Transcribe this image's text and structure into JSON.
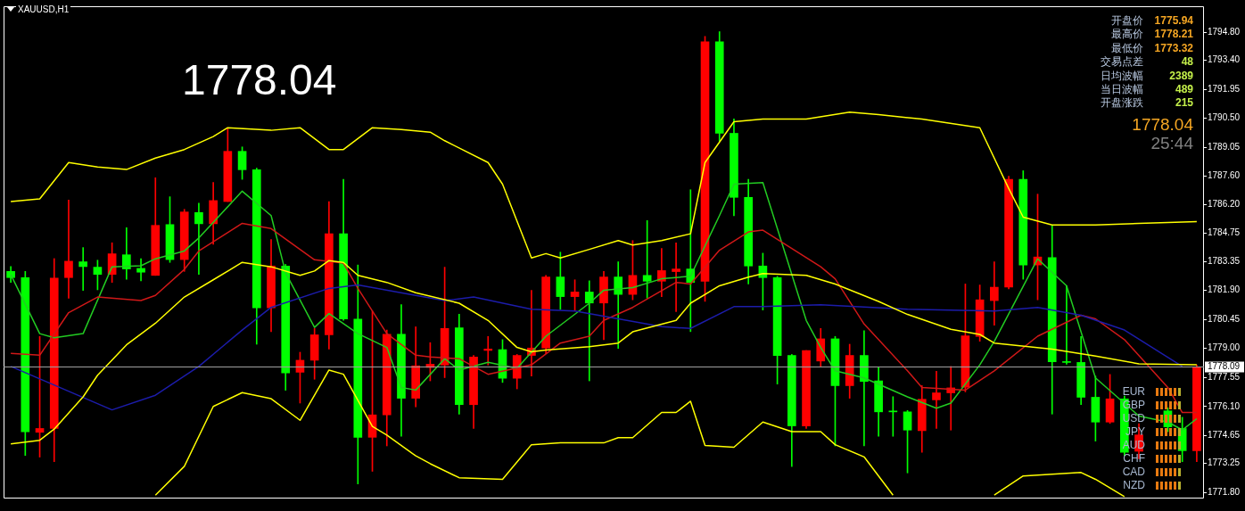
{
  "chart_data": {
    "type": "candlestick",
    "title": "XAUUSD,H1",
    "categories": [
      null,
      null,
      null,
      null,
      null,
      null,
      null,
      null,
      null,
      null,
      null,
      null,
      null,
      null,
      null,
      null,
      null,
      null,
      null,
      null,
      null,
      null,
      null,
      null,
      null,
      null,
      null,
      null,
      null,
      null,
      null,
      null,
      null,
      null,
      null,
      null,
      null,
      null,
      null,
      null,
      null,
      null,
      null,
      null,
      null,
      null,
      null,
      null,
      null,
      null,
      null,
      null,
      null,
      null,
      null,
      null,
      null,
      null,
      null,
      null,
      null,
      null,
      null,
      null,
      null,
      null,
      null,
      null,
      null,
      null,
      null,
      null,
      null,
      null,
      null,
      null,
      null,
      null,
      null,
      null,
      null,
      null,
      null
    ],
    "ohlc": [
      [
        1782.85,
        1783.09,
        1782.3,
        1782.54
      ],
      [
        1782.54,
        1782.85,
        1773.65,
        1774.84
      ],
      [
        1774.81,
        1779.6,
        1773.57,
        1775.0
      ],
      [
        1775.0,
        1783.49,
        1773.34,
        1782.51
      ],
      [
        1782.54,
        1786.42,
        1781.51,
        1783.36
      ],
      [
        1783.33,
        1784.04,
        1781.9,
        1783.09
      ],
      [
        1783.06,
        1783.41,
        1781.93,
        1782.7
      ],
      [
        1782.7,
        1784.28,
        1782.3,
        1783.73
      ],
      [
        1783.68,
        1785.03,
        1782.46,
        1782.97
      ],
      [
        1783.0,
        1783.49,
        1782.38,
        1782.81
      ],
      [
        1782.65,
        1787.53,
        1782.65,
        1785.15
      ],
      [
        1785.19,
        1786.58,
        1783.3,
        1783.44
      ],
      [
        1783.44,
        1785.95,
        1782.85,
        1785.82
      ],
      [
        1785.79,
        1786.26,
        1782.7,
        1785.23
      ],
      [
        1785.23,
        1787.3,
        1784.2,
        1786.39
      ],
      [
        1786.34,
        1789.99,
        1786.34,
        1788.85
      ],
      [
        1788.85,
        1789.07,
        1787.45,
        1787.93
      ],
      [
        1787.93,
        1788.01,
        1779.21,
        1781.03
      ],
      [
        1781.03,
        1784.44,
        1779.84,
        1783.12
      ],
      [
        1783.12,
        1783.2,
        1776.91,
        1777.78
      ],
      [
        1777.81,
        1778.81,
        1776.27,
        1778.41
      ],
      [
        1778.41,
        1780.0,
        1777.46,
        1779.68
      ],
      [
        1779.68,
        1786.34,
        1778.97,
        1784.73
      ],
      [
        1784.73,
        1787.45,
        1780.4,
        1780.47
      ],
      [
        1780.47,
        1783.17,
        1772.23,
        1774.56
      ],
      [
        1774.56,
        1780.87,
        1772.86,
        1775.68
      ],
      [
        1775.68,
        1779.92,
        1774.13,
        1779.71
      ],
      [
        1779.71,
        1781.19,
        1774.61,
        1776.51
      ],
      [
        1776.51,
        1780.08,
        1776.08,
        1778.13
      ],
      [
        1778.05,
        1779.29,
        1777.38,
        1778.21
      ],
      [
        1778.17,
        1783.06,
        1777.54,
        1780.0
      ],
      [
        1780.03,
        1780.71,
        1775.72,
        1776.19
      ],
      [
        1776.19,
        1778.65,
        1775.0,
        1778.57
      ],
      [
        1778.9,
        1779.6,
        1778.17,
        1778.97
      ],
      [
        1778.94,
        1779.44,
        1777.3,
        1777.51
      ],
      [
        1777.51,
        1778.7,
        1776.98,
        1778.65
      ],
      [
        1778.65,
        1781.9,
        1777.62,
        1779.02
      ],
      [
        1779.02,
        1782.65,
        1778.73,
        1782.57
      ],
      [
        1782.57,
        1783.81,
        1780.95,
        1781.59
      ],
      [
        1781.59,
        1782.43,
        1780.87,
        1781.82
      ],
      [
        1781.82,
        1782.38,
        1777.38,
        1781.27
      ],
      [
        1781.27,
        1782.85,
        1779.44,
        1782.57
      ],
      [
        1782.57,
        1783.33,
        1779.0,
        1781.7
      ],
      [
        1781.7,
        1784.39,
        1781.43,
        1782.65
      ],
      [
        1782.65,
        1785.39,
        1781.51,
        1782.36
      ],
      [
        1782.36,
        1784.0,
        1781.59,
        1782.89
      ],
      [
        1782.84,
        1784.28,
        1780.84,
        1782.97
      ],
      [
        1782.97,
        1786.93,
        1779.84,
        1782.3
      ],
      [
        1782.36,
        1794.59,
        1781.35,
        1794.32
      ],
      [
        1794.32,
        1794.83,
        1789.36,
        1789.75
      ],
      [
        1789.75,
        1790.47,
        1785.63,
        1786.55
      ],
      [
        1786.55,
        1787.45,
        1782.22,
        1783.12
      ],
      [
        1783.12,
        1783.76,
        1780.92,
        1782.54
      ],
      [
        1782.54,
        1782.6,
        1777.22,
        1778.65
      ],
      [
        1778.65,
        1778.7,
        1773.1,
        1775.13
      ],
      [
        1775.13,
        1778.89,
        1775.0,
        1778.89
      ],
      [
        1778.37,
        1780.0,
        1778.1,
        1779.48
      ],
      [
        1779.48,
        1779.6,
        1774.13,
        1777.14
      ],
      [
        1777.14,
        1779.21,
        1776.51,
        1778.65
      ],
      [
        1778.65,
        1779.89,
        1774.13,
        1777.35
      ],
      [
        1777.38,
        1778.05,
        1774.61,
        1775.83
      ],
      [
        1775.83,
        1776.59,
        1774.61,
        1775.83
      ],
      [
        1775.83,
        1775.9,
        1772.78,
        1774.92
      ],
      [
        1774.89,
        1777.14,
        1773.81,
        1776.46
      ],
      [
        1776.43,
        1777.86,
        1775.0,
        1776.78
      ],
      [
        1776.78,
        1778.1,
        1774.92,
        1777.03
      ],
      [
        1777.06,
        1782.22,
        1776.83,
        1779.63
      ],
      [
        1779.6,
        1782.17,
        1779.36,
        1781.43
      ],
      [
        1781.39,
        1783.33,
        1780.16,
        1782.06
      ],
      [
        1782.06,
        1787.61,
        1781.98,
        1787.45
      ],
      [
        1787.45,
        1787.88,
        1782.46,
        1783.17
      ],
      [
        1783.17,
        1786.71,
        1781.43,
        1783.57
      ],
      [
        1783.54,
        1785.15,
        1775.72,
        1778.33
      ],
      [
        1778.33,
        1782.14,
        1778.21,
        1778.3
      ],
      [
        1778.3,
        1779.6,
        1776.19,
        1776.56
      ],
      [
        1776.56,
        1777.62,
        1774.37,
        1775.32
      ],
      [
        1775.32,
        1777.7,
        1775.25,
        1776.48
      ],
      [
        1776.48,
        1776.62,
        1773.65,
        1773.81
      ],
      [
        1773.86,
        1775.24,
        1773.49,
        1774.68
      ],
      null,
      [
        1775.88,
        1776.03,
        1774.84,
        1775.08
      ],
      [
        1775.0,
        1775.56,
        1773.34,
        1773.89
      ],
      [
        1773.89,
        1778.17,
        1773.34,
        1778.04
      ]
    ],
    "colors": [
      "#00ff00",
      "#00ff00",
      "#ff0000",
      "#ff0000",
      "#ff0000",
      "#00ff00",
      "#00ff00",
      "#ff0000",
      "#00ff00",
      "#00ff00",
      "#ff0000",
      "#00ff00",
      "#ff0000",
      "#00ff00",
      "#ff0000",
      "#ff0000",
      "#00ff00",
      "#00ff00",
      "#ff0000",
      "#00ff00",
      "#ff0000",
      "#ff0000",
      "#ff0000",
      "#00ff00",
      "#00ff00",
      "#ff0000",
      "#ff0000",
      "#00ff00",
      "#ff0000",
      "#ff0000",
      "#ff0000",
      "#00ff00",
      "#ff0000",
      "#ff0000",
      "#00ff00",
      "#ff0000",
      "#ff0000",
      "#ff0000",
      "#00ff00",
      "#ff0000",
      "#00ff00",
      "#ff0000",
      "#00ff00",
      "#ff0000",
      "#00ff00",
      "#ff0000",
      "#ff0000",
      "#00ff00",
      "#ff0000",
      "#00ff00",
      "#00ff00",
      "#00ff00",
      "#00ff00",
      "#00ff00",
      "#00ff00",
      "#ff0000",
      "#ff0000",
      "#00ff00",
      "#ff0000",
      "#00ff00",
      "#00ff00",
      "#00ff00",
      "#00ff00",
      "#ff0000",
      "#ff0000",
      "#ff0000",
      "#ff0000",
      "#ff0000",
      "#ff0000",
      "#ff0000",
      "#00ff00",
      "#ff0000",
      "#00ff00",
      "#00ff00",
      "#00ff00",
      "#00ff00",
      "#ff0000",
      "#00ff00",
      "#ff0000",
      null,
      "#00ff00",
      "#00ff00",
      "#ff0000"
    ],
    "series": [
      {
        "type": "line",
        "color": "#ffff00",
        "values": [
          1786.34,
          null,
          1786.47,
          null,
          1788.29,
          null,
          1788.07,
          null,
          1787.94,
          null,
          1788.51,
          null,
          1788.94,
          null,
          1789.59,
          1790.03,
          null,
          null,
          1789.9,
          null,
          1790.03,
          null,
          1788.94,
          1788.94,
          null,
          1790.03,
          null,
          1789.94,
          null,
          1789.81,
          1789.38,
          null,
          null,
          1788.29,
          1787.21,
          null,
          1783.52,
          1783.74,
          1783.52,
          null,
          1783.95,
          null,
          1784.39,
          1784.17,
          null,
          1784.39,
          null,
          1784.73,
          1788.29,
          null,
          1790.33,
          null,
          1790.46,
          null,
          null,
          1790.46,
          null,
          null,
          1790.81,
          null,
          1790.68,
          null,
          null,
          1790.46,
          null,
          null,
          null,
          1790.03,
          null,
          1786.99,
          1785.56,
          null,
          1785.17,
          null,
          null,
          1785.17,
          null,
          null,
          1785.25,
          null,
          null,
          null,
          1785.34
        ]
      },
      {
        "type": "line",
        "color": "#ffff00",
        "values": [
          1774.23,
          null,
          1774.41,
          1774.97,
          null,
          1776.58,
          1777.66,
          null,
          1779.18,
          null,
          1780.26,
          null,
          1781.57,
          null,
          1782.43,
          null,
          1783.3,
          null,
          1783.08,
          null,
          1782.65,
          1782.87,
          1783.39,
          1783.3,
          1782.65,
          null,
          1782.3,
          null,
          1781.78,
          null,
          null,
          1781.26,
          null,
          1780.4,
          null,
          1779.05,
          1778.83,
          1778.92,
          null,
          null,
          1779.09,
          null,
          1779.27,
          1779.83,
          null,
          null,
          1780.4,
          1781.26,
          null,
          1782.13,
          null,
          1782.56,
          1782.74,
          null,
          null,
          1782.65,
          null,
          1782.22,
          null,
          null,
          1781.35,
          null,
          1780.7,
          null,
          null,
          1779.96,
          null,
          1779.7,
          1779.27,
          null,
          null,
          null,
          1778.96,
          null,
          null,
          1778.62,
          null,
          null,
          1778.23,
          null,
          null,
          null,
          1778.18
        ]
      },
      {
        "type": "line",
        "color": "#ffff00",
        "values": [
          null,
          null,
          null,
          null,
          null,
          null,
          null,
          null,
          null,
          null,
          1771.67,
          null,
          1773.11,
          null,
          1776.1,
          null,
          1776.79,
          null,
          1776.49,
          null,
          1775.41,
          null,
          1777.92,
          1777.71,
          null,
          1775.1,
          1774.67,
          null,
          1773.63,
          1773.24,
          null,
          1772.54,
          null,
          null,
          1772.46,
          null,
          1774.19,
          null,
          1774.28,
          null,
          null,
          1774.28,
          1774.54,
          1774.54,
          null,
          1775.8,
          1775.8,
          1776.36,
          1774.15,
          null,
          1774.06,
          null,
          1775.32,
          null,
          1774.84,
          null,
          1774.84,
          1774.19,
          null,
          1773.58,
          null,
          1771.67,
          null,
          null,
          null,
          null,
          null,
          null,
          null,
          null,
          null,
          null,
          null,
          null,
          null,
          null,
          null,
          null,
          null,
          null,
          null,
          null,
          null
        ]
      },
      {
        "type": "line",
        "color": "#ffff00",
        "values": [
          null,
          null,
          null,
          null,
          null,
          null,
          null,
          null,
          null,
          null,
          null,
          null,
          null,
          null,
          null,
          null,
          null,
          null,
          null,
          null,
          null,
          null,
          null,
          null,
          null,
          null,
          null,
          null,
          null,
          null,
          null,
          null,
          null,
          null,
          null,
          null,
          null,
          null,
          null,
          null,
          null,
          null,
          null,
          null,
          null,
          null,
          null,
          null,
          null,
          null,
          null,
          null,
          null,
          null,
          null,
          null,
          null,
          null,
          null,
          null,
          null,
          null,
          null,
          null,
          null,
          null,
          null,
          null,
          1771.67,
          null,
          1772.63,
          null,
          null,
          null,
          1772.8,
          1772.46,
          null,
          1771.59,
          null,
          null,
          null,
          null,
          null
        ]
      },
      {
        "type": "line",
        "color": "#1c1caa",
        "values": [
          1778.1,
          null,
          null,
          null,
          null,
          null,
          null,
          1775.93,
          null,
          null,
          1776.66,
          null,
          null,
          1778.1,
          null,
          null,
          1779.92,
          null,
          1781.05,
          null,
          null,
          null,
          1782.0,
          null,
          1782.17,
          null,
          null,
          null,
          1781.65,
          null,
          1781.39,
          null,
          1781.57,
          null,
          null,
          null,
          1780.96,
          null,
          null,
          1780.87,
          null,
          null,
          1780.48,
          null,
          null,
          1780.09,
          null,
          1780.0,
          null,
          null,
          1781.09,
          null,
          1781.09,
          null,
          null,
          null,
          1781.18,
          null,
          null,
          null,
          null,
          null,
          1780.96,
          null,
          null,
          null,
          null,
          null,
          1780.87,
          null,
          null,
          1781.05,
          null,
          null,
          1780.66,
          null,
          null,
          1779.92,
          null,
          null,
          null,
          1778.1,
          null
        ]
      },
      {
        "type": "line",
        "color": "#d01818",
        "values": [
          1778.75,
          null,
          1778.66,
          null,
          1780.79,
          null,
          1781.57,
          null,
          null,
          1781.39,
          1781.65,
          null,
          1782.95,
          1783.87,
          null,
          null,
          1785.25,
          null,
          1784.99,
          null,
          null,
          1783.43,
          null,
          1783.26,
          1782.0,
          null,
          1779.74,
          null,
          1778.66,
          1778.57,
          null,
          1778.49,
          null,
          1777.71,
          null,
          null,
          1778.18,
          null,
          1779.27,
          null,
          1779.61,
          1780.4,
          null,
          1781.05,
          null,
          null,
          1782.3,
          1782.22,
          null,
          1783.91,
          null,
          1784.82,
          1784.91,
          null,
          null,
          null,
          1783.08,
          1782.48,
          null,
          1780.22,
          null,
          null,
          1777.88,
          1777.05,
          null,
          null,
          1776.92,
          null,
          1777.88,
          null,
          null,
          1779.61,
          null,
          null,
          1780.66,
          1780.48,
          null,
          1779.44,
          null,
          null,
          1777.05,
          1775.8,
          1775.8
        ]
      },
      {
        "type": "line",
        "color": "#22cc22",
        "values": [
          1782.69,
          null,
          1779.74,
          1779.53,
          null,
          1779.74,
          null,
          1783.08,
          null,
          1783.13,
          1783.48,
          null,
          1783.87,
          1784.52,
          null,
          null,
          1786.86,
          null,
          1785.64,
          1782.78,
          null,
          1780.05,
          1780.74,
          null,
          1779.74,
          null,
          1779.05,
          1777.05,
          1776.92,
          null,
          1778.49,
          1777.92,
          null,
          1778.31,
          null,
          1778.01,
          null,
          1779.61,
          null,
          null,
          1781.26,
          1781.91,
          null,
          1782.04,
          null,
          1782.48,
          null,
          1782.61,
          null,
          1785.64,
          1787.21,
          null,
          1787.29,
          null,
          null,
          1780.4,
          1779.05,
          1777.88,
          null,
          1777.53,
          null,
          null,
          1776.58,
          null,
          1776.01,
          1776.27,
          null,
          1778.18,
          1779.35,
          null,
          null,
          1783.48,
          null,
          1782.13,
          null,
          1777.53,
          null,
          null,
          1775.62,
          null,
          1775.32,
          1774.93,
          1775.49
        ]
      }
    ],
    "ylim": [
      1771.5,
      1796.1
    ],
    "yticks": [
      {
        "value": 1794.8,
        "label": "1794.80"
      },
      {
        "value": 1793.4,
        "label": "1793.40"
      },
      {
        "value": 1791.95,
        "label": "1791.95"
      },
      {
        "value": 1790.5,
        "label": "1790.50"
      },
      {
        "value": 1789.05,
        "label": "1789.05"
      },
      {
        "value": 1787.6,
        "label": "1787.60"
      },
      {
        "value": 1786.2,
        "label": "1786.20"
      },
      {
        "value": 1784.75,
        "label": "1784.75"
      },
      {
        "value": 1783.35,
        "label": "1783.35"
      },
      {
        "value": 1781.9,
        "label": "1781.90"
      },
      {
        "value": 1780.45,
        "label": "1780.45"
      },
      {
        "value": 1779,
        "label": "1779.00"
      },
      {
        "value": 1777.55,
        "label": "1777.55"
      },
      {
        "value": 1776.1,
        "label": "1776.10"
      },
      {
        "value": 1774.65,
        "label": "1774.65"
      },
      {
        "value": 1773.25,
        "label": "1773.25"
      },
      {
        "value": 1771.8,
        "label": "1771.80"
      }
    ],
    "ref_lines": [
      {
        "axis": "y",
        "value": 1778.09,
        "label": "1778.09",
        "color": "#a0a0a0"
      }
    ],
    "tick_labels": "y",
    "annotations": [
      "1778.04",
      "开盘价",
      "1775.94",
      "最高价",
      "1778.21",
      "最低价",
      "1773.32",
      "交易点差",
      "48",
      "日均波幅",
      "2389",
      "当日波幅",
      "489",
      "开盘涨跌",
      "215",
      "1778.04",
      "25:44",
      "EUR",
      "GBP",
      "USD",
      "JPY",
      "AUD",
      "CHF",
      "CAD",
      "NZD"
    ]
  }
}
